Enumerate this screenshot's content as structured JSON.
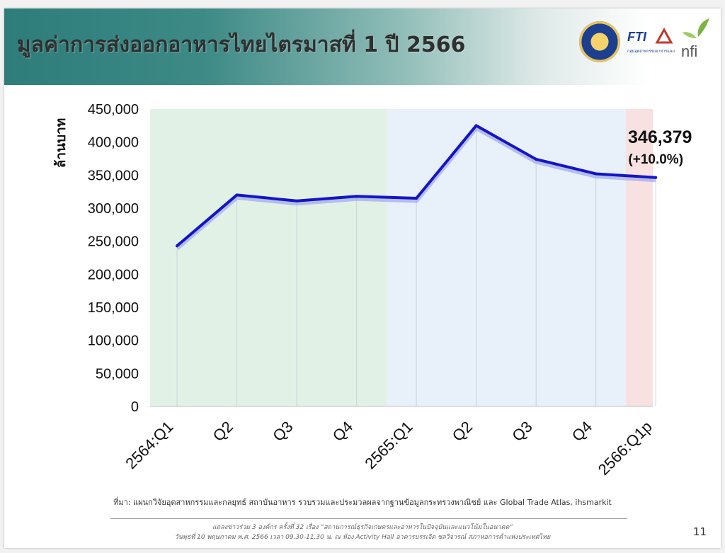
{
  "slide": {
    "title": "มูลค่าการส่งออกอาหารไทยไตรมาสที่ 1 ปี 2566",
    "source": "ที่มา: แผนกวิจัยอุตสาหกรรมและกลยุทธ์  สถาบันอาหาร รวบรวมและประมวลผลจากฐานข้อมูลกระทรวงพาณิชย์ และ Global Trade Atlas, ihsmarkit",
    "footer_line1": "แถลงข่าวร่วม 3 องค์กร ครั้งที่ 32 เรื่อง “สถานการณ์ธุรกิจเกษตรและอาหารในปัจจุบันและแนวโน้มในอนาคต”",
    "footer_line2": "วันพุธที่ 10 พฤษภาคม พ.ศ. 2566 เวลา 09.30-11.30 น. ณ ห้อง Activity Hall อาคารบรรเจิด ชลวิจารณ์ สภาหอการค้าแห่งประเทศไทย",
    "page_number": "11",
    "logo_fti_text": "FTI",
    "logo_fti_sub": "กลุ่มอุตสาหกรรมอาหารและเครื่องดื่ม",
    "logo_nfi_text": "nfi"
  },
  "chart_data": {
    "type": "line",
    "categories": [
      "2564:Q1",
      "Q2",
      "Q3",
      "Q4",
      "2565:Q1",
      "Q2",
      "Q3",
      "Q4",
      "2566:Q1p"
    ],
    "series": [
      {
        "values": [
          243000,
          320000,
          311000,
          318000,
          315000,
          425000,
          374000,
          352000,
          346379
        ]
      }
    ],
    "ylabel": "ล้านบาท",
    "xlabel": "",
    "ylim": [
      0,
      450000
    ],
    "yticks": [
      "450,000",
      "400,000",
      "350,000",
      "300,000",
      "250,000",
      "200,000",
      "150,000",
      "100,000",
      "50,000",
      "0"
    ],
    "annotation_value": "346,379",
    "annotation_change": "(+10.0%)",
    "line_color": "#1414c8",
    "bands": [
      {
        "from_index": 0,
        "to_index": 3,
        "color": "#e2f1e6"
      },
      {
        "from_index": 4,
        "to_index": 7,
        "color": "#e8f0fa"
      },
      {
        "from_index": 8,
        "to_index": 8,
        "color": "#f8e1e1"
      }
    ]
  }
}
